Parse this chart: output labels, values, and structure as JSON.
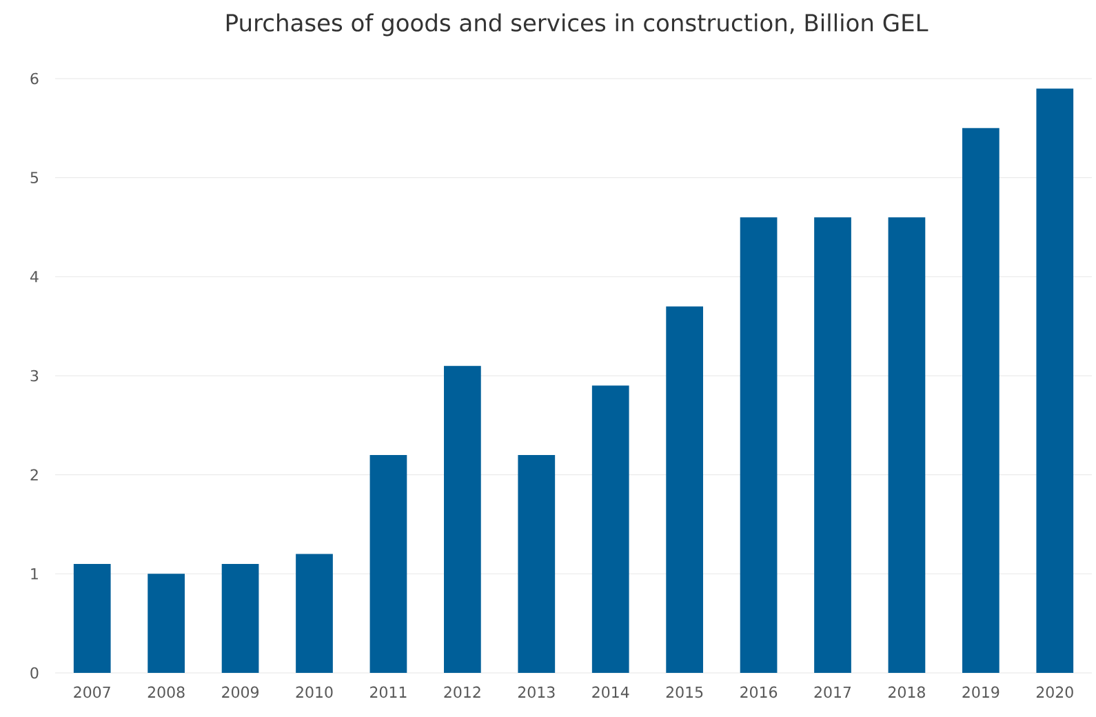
{
  "chart_data": {
    "type": "bar",
    "title": "Purchases of goods and services in construction, Billion GEL",
    "categories": [
      "2007",
      "2008",
      "2009",
      "2010",
      "2011",
      "2012",
      "2013",
      "2014",
      "2015",
      "2016",
      "2017",
      "2018",
      "2019",
      "2020"
    ],
    "values": [
      1.1,
      1.0,
      1.1,
      1.2,
      2.2,
      3.1,
      2.2,
      2.9,
      3.7,
      4.6,
      4.6,
      4.6,
      5.5,
      5.9
    ],
    "color": "#005f99",
    "ylim": [
      0,
      6
    ],
    "yticks": [
      0,
      1,
      2,
      3,
      4,
      5,
      6
    ],
    "grid": "y"
  }
}
